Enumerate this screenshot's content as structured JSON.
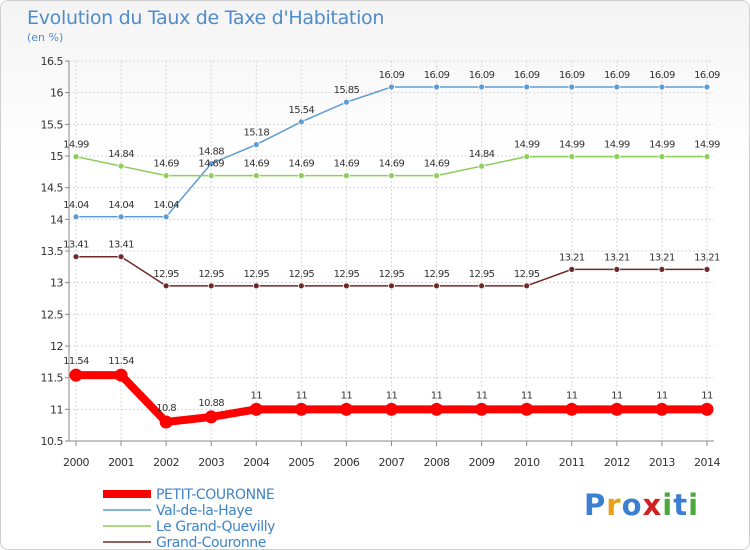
{
  "header": {
    "title": "Evolution du Taux de Taxe d'Habitation",
    "subtitle": "(en %)"
  },
  "logo": {
    "text": "Proxiti",
    "colors": [
      "#3c7fd2",
      "#e8a21a",
      "#3c7fd2",
      "#d22020",
      "#4aa83c",
      "#3c7fd2",
      "#4aa83c"
    ]
  },
  "chart_data": {
    "type": "line",
    "categories": [
      "2000",
      "2001",
      "2002",
      "2003",
      "2004",
      "2005",
      "2006",
      "2007",
      "2008",
      "2009",
      "2010",
      "2011",
      "2012",
      "2013",
      "2014"
    ],
    "ylim": [
      10.5,
      16.5
    ],
    "yticks": [
      10.5,
      11,
      11.5,
      12,
      12.5,
      13,
      13.5,
      14,
      14.5,
      15,
      15.5,
      16,
      16.5
    ],
    "grid": true,
    "legend_position": "bottom-left",
    "series": [
      {
        "name": "Val-de-la-Haye",
        "color": "#5c9bd3",
        "width": 1.5,
        "values": [
          14.04,
          14.04,
          14.04,
          14.88,
          15.18,
          15.54,
          15.85,
          16.09,
          16.09,
          16.09,
          16.09,
          16.09,
          16.09,
          16.09,
          16.09
        ],
        "labels": [
          "14.04",
          "14.04",
          "14.04",
          "14.88",
          "15.18",
          "15.54",
          "15.85",
          "16.09",
          "16.09",
          "16.09",
          "16.09",
          "16.09",
          "16.09",
          "16.09",
          "16.09"
        ]
      },
      {
        "name": "Le Grand-Quevilly",
        "color": "#8fce5a",
        "width": 1.5,
        "values": [
          14.99,
          14.84,
          14.69,
          14.69,
          14.69,
          14.69,
          14.69,
          14.69,
          14.69,
          14.84,
          14.99,
          14.99,
          14.99,
          14.99,
          14.99
        ],
        "labels": [
          "14.99",
          "14.84",
          "14.69",
          "14.69",
          "14.69",
          "14.69",
          "14.69",
          "14.69",
          "14.69",
          "14.84",
          "14.99",
          "14.99",
          "14.99",
          "14.99",
          "14.99"
        ]
      },
      {
        "name": "Grand-Couronne",
        "color": "#6e2a2a",
        "width": 1.5,
        "values": [
          13.41,
          13.41,
          12.95,
          12.95,
          12.95,
          12.95,
          12.95,
          12.95,
          12.95,
          12.95,
          12.95,
          13.21,
          13.21,
          13.21,
          13.21
        ],
        "labels": [
          "13.41",
          "13.41",
          "12.95",
          "12.95",
          "12.95",
          "12.95",
          "12.95",
          "12.95",
          "12.95",
          "12.95",
          "12.95",
          "13.21",
          "13.21",
          "13.21",
          "13.21"
        ]
      },
      {
        "name": "PETIT-COURONNE",
        "color": "#ff0000",
        "width": 8,
        "values": [
          11.54,
          11.54,
          10.8,
          10.88,
          11,
          11,
          11,
          11,
          11,
          11,
          11,
          11,
          11,
          11,
          11
        ],
        "labels": [
          "11.54",
          "11.54",
          "10.8",
          "10.88",
          "11",
          "11",
          "11",
          "11",
          "11",
          "11",
          "11",
          "11",
          "11",
          "11",
          "11"
        ]
      }
    ],
    "legend": [
      {
        "name": "PETIT-COURONNE",
        "color": "#ff0000",
        "width": 8
      },
      {
        "name": "Val-de-la-Haye",
        "color": "#5c9bd3",
        "width": 1.5
      },
      {
        "name": "Le Grand-Quevilly",
        "color": "#8fce5a",
        "width": 1.5
      },
      {
        "name": "Grand-Couronne",
        "color": "#6e2a2a",
        "width": 1.5
      }
    ]
  }
}
